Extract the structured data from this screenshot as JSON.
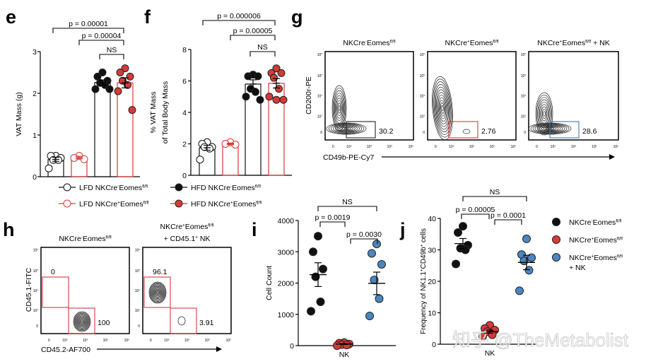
{
  "panel_labels": {
    "e": "e",
    "f": "f",
    "g": "g",
    "h": "h",
    "i": "i",
    "j": "j"
  },
  "colors": {
    "black": "#111111",
    "red": "#d63a36",
    "blue": "#4a86c0",
    "gate_red": "#d9383f",
    "gate_blue": "#3f7bb5"
  },
  "legend_ef": [
    {
      "label": "LFD NKCre^-^Eomes^fl/fl^",
      "color": "#111111",
      "filled": false
    },
    {
      "label": "HFD NKCre^-^Eomes^fl/fl^",
      "color": "#111111",
      "filled": true
    },
    {
      "label": "LFD NKCre^+^Eomes^fl/fl^",
      "color": "#d63a36",
      "filled": false
    },
    {
      "label": "HFD NKCre^+^Eomes^fl/fl^",
      "color": "#d63a36",
      "filled": true
    }
  ],
  "legend_j": [
    {
      "label": "NKCre^-^Eomes^fl/fl^",
      "color": "#111111"
    },
    {
      "label": "NKCre^+^Eomes^fl/fl^",
      "color": "#d63a36"
    },
    {
      "label": "NKCre^+^Eomes^fl/fl^",
      "label2": "+ NK",
      "color": "#4a86c0"
    }
  ],
  "chart_data": [
    {
      "id": "e",
      "type": "bar",
      "ylabel": "VAT Mass (g)",
      "ylim": [
        0,
        3
      ],
      "yticks": [
        "0",
        "1",
        "2",
        "3"
      ],
      "groups": [
        {
          "name": "LFD NKCre-Eomes fl/fl",
          "color": "#111111",
          "filled": false,
          "values": [
            0.5,
            0.5,
            0.45,
            0.4,
            0.4,
            0.2
          ],
          "mean": 0.41,
          "sem": 0.05
        },
        {
          "name": "LFD NKCre+Eomes fl/fl",
          "color": "#d63a36",
          "filled": false,
          "values": [
            0.5,
            0.45,
            0.42
          ],
          "mean": 0.46,
          "sem": 0.03
        },
        {
          "name": "HFD NKCre-Eomes fl/fl",
          "color": "#111111",
          "filled": true,
          "values": [
            2.5,
            2.4,
            2.3,
            2.25,
            2.2,
            2.1,
            2.1
          ],
          "mean": 2.26,
          "sem": 0.06
        },
        {
          "name": "HFD NKCre+Eomes fl/fl",
          "color": "#d63a36",
          "filled": true,
          "values": [
            2.6,
            2.5,
            2.4,
            2.3,
            2.2,
            2.05,
            1.6
          ],
          "mean": 2.25,
          "sem": 0.12
        }
      ],
      "comparisons": [
        {
          "a": 0,
          "b": 3,
          "label": "p = 0.00001"
        },
        {
          "a": 1,
          "b": 3,
          "label": "p = 0.00004"
        },
        {
          "a": 2,
          "b": 3,
          "label": "NS"
        }
      ]
    },
    {
      "id": "f",
      "type": "bar",
      "ylabel": "% VAT Mass",
      "ylabel2": "of Total Body Mass",
      "ylim": [
        0,
        8
      ],
      "yticks": [
        "0",
        "2",
        "4",
        "6",
        "8"
      ],
      "groups": [
        {
          "name": "LFD NKCre-Eomes fl/fl",
          "color": "#111111",
          "filled": false,
          "values": [
            2.1,
            2.0,
            1.8,
            1.8,
            1.7,
            1.0
          ],
          "mean": 1.75,
          "sem": 0.16
        },
        {
          "name": "LFD NKCre+Eomes fl/fl",
          "color": "#d63a36",
          "filled": false,
          "values": [
            2.1,
            2.0,
            1.95
          ],
          "mean": 2.0,
          "sem": 0.05
        },
        {
          "name": "HFD NKCre-Eomes fl/fl",
          "color": "#111111",
          "filled": true,
          "values": [
            6.4,
            6.3,
            6.3,
            5.5,
            5.3,
            5.0,
            4.8
          ],
          "mean": 5.8,
          "sem": 0.27
        },
        {
          "name": "HFD NKCre+Eomes fl/fl",
          "color": "#d63a36",
          "filled": true,
          "values": [
            6.8,
            6.5,
            6.5,
            6.2,
            5.5,
            5.0,
            4.8,
            4.8
          ],
          "mean": 5.85,
          "sem": 0.3
        }
      ],
      "comparisons": [
        {
          "a": 0,
          "b": 3,
          "label": "p = 0.000006"
        },
        {
          "a": 1,
          "b": 3,
          "label": "p = 0.00005"
        },
        {
          "a": 2,
          "b": 3,
          "label": "NS"
        }
      ]
    },
    {
      "id": "i",
      "type": "scatter",
      "ylabel": "Cell Count",
      "xlabel": "NK",
      "ylim": [
        0,
        4000
      ],
      "yticks": [
        "0",
        "1000",
        "2000",
        "3000",
        "4000"
      ],
      "groups": [
        {
          "name": "NKCre-Eomes fl/fl",
          "color": "#111111",
          "values": [
            3500,
            3000,
            2450,
            2200,
            1400,
            1100
          ],
          "mean": 2270,
          "sem": 380
        },
        {
          "name": "NKCre+Eomes fl/fl",
          "color": "#d63a36",
          "values": [
            100,
            80,
            50,
            30,
            20,
            0
          ],
          "mean": 50,
          "sem": 15
        },
        {
          "name": "NKCre+Eomes fl/fl + NK",
          "color": "#4a86c0",
          "values": [
            3250,
            2950,
            2600,
            2100,
            1500,
            950
          ],
          "mean": 1990,
          "sem": 360
        }
      ],
      "comparisons": [
        {
          "a": 0,
          "b": 2,
          "label": "NS"
        },
        {
          "a": 0,
          "b": 1,
          "label": "p = 0.0019"
        },
        {
          "a": 1,
          "b": 2,
          "label": "p = 0.0030"
        }
      ]
    },
    {
      "id": "j",
      "type": "scatter",
      "ylabel": "Frequency of NK1.1^+^CD49b^+^ cells",
      "xlabel": "NK",
      "ylim": [
        0,
        40
      ],
      "yticks": [
        "0",
        "10",
        "20",
        "30",
        "40"
      ],
      "groups": [
        {
          "name": "NKCre-Eomes fl/fl",
          "color": "#111111",
          "values": [
            37.5,
            35.5,
            31.5,
            30.5,
            30,
            25.5
          ],
          "mean": 32,
          "sem": 1.6
        },
        {
          "name": "NKCre+Eomes fl/fl",
          "color": "#d63a36",
          "values": [
            6,
            5,
            4.5,
            4,
            3,
            2.5
          ],
          "mean": 4,
          "sem": 0.5
        },
        {
          "name": "NKCre+Eomes fl/fl + NK",
          "color": "#4a86c0",
          "values": [
            33.5,
            28.5,
            27.5,
            26.5,
            23.5,
            17
          ],
          "mean": 26,
          "sem": 2.3
        }
      ],
      "comparisons": [
        {
          "a": 0,
          "b": 2,
          "label": "NS"
        },
        {
          "a": 0,
          "b": 1,
          "label": "p = 0.00005"
        },
        {
          "a": 1,
          "b": 2,
          "label": "p = 0.0001"
        }
      ]
    }
  ],
  "flow_ticks": [
    "0",
    "10^3^",
    "10^4^",
    "10^5^",
    "10^6^"
  ],
  "flow_g": {
    "ylabel": "CD200r-PE",
    "xlabel": "CD49b-PE-Cy7",
    "plots": [
      {
        "title": "NKCre^-^Eomes^fl/fl^",
        "gate_value": "30.2",
        "gate_color": "#222222"
      },
      {
        "title": "NKCre^+^Eomes^fl/fl^",
        "gate_value": "2.76",
        "gate_color": "#d9383f"
      },
      {
        "title": "NKCre^+^Eomes^fl/fl^ + NK",
        "gate_value": "28.6",
        "gate_color": "#3f7bb5"
      }
    ]
  },
  "flow_h": {
    "ylabel": "CD45.1-FITC",
    "xlabel": "CD45.2-AF700",
    "plots": [
      {
        "title": "NKCre^-^Eomes^fl/fl^",
        "title2": "",
        "gate_upper": "0",
        "gate_lower": "100"
      },
      {
        "title": "NKCre^+^Eomes^fl/fl^",
        "title2": "+ CD45.1^+^ NK",
        "gate_upper": "96.1",
        "gate_lower": "3.91"
      }
    ]
  },
  "watermark": "知乎 @TheMetabolist"
}
